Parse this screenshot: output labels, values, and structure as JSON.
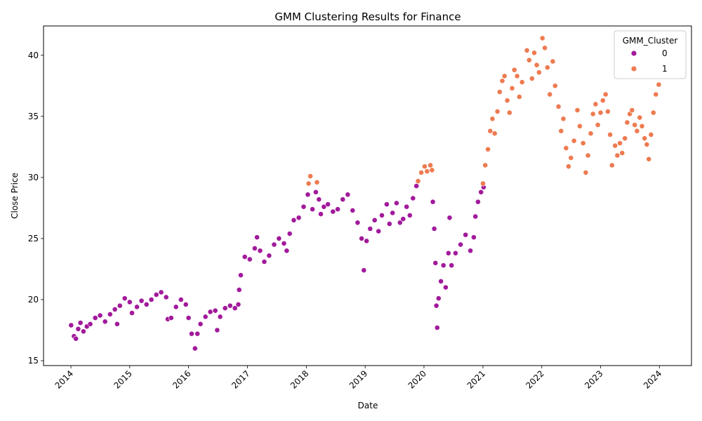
{
  "chart_data": {
    "type": "scatter",
    "title": "GMM Clustering Results for Finance",
    "xlabel": "Date",
    "ylabel": "Close Price",
    "x_ticks": [
      "2014",
      "2015",
      "2016",
      "2017",
      "2018",
      "2019",
      "2020",
      "2021",
      "2022",
      "2023",
      "2024"
    ],
    "y_ticks": [
      15,
      20,
      25,
      30,
      35,
      40
    ],
    "xlim": [
      "2013-07-15",
      "2024-07-18"
    ],
    "ylim": [
      14.6,
      42.4
    ],
    "grid": false,
    "legend": {
      "title": "GMM_Cluster",
      "placement": "top-right",
      "entries": [
        {
          "label": "0",
          "color": "#a21a9b"
        },
        {
          "label": "1",
          "color": "#ee7b51"
        }
      ]
    },
    "series": [
      {
        "name": "0",
        "color": "#a21a9b",
        "points": [
          [
            "2014-01-02",
            17.9
          ],
          [
            "2014-01-20",
            17.0
          ],
          [
            "2014-02-01",
            16.8
          ],
          [
            "2014-02-15",
            17.6
          ],
          [
            "2014-03-01",
            18.1
          ],
          [
            "2014-03-20",
            17.4
          ],
          [
            "2014-04-10",
            17.8
          ],
          [
            "2014-05-01",
            18.0
          ],
          [
            "2014-06-01",
            18.5
          ],
          [
            "2014-07-01",
            18.7
          ],
          [
            "2014-08-01",
            18.2
          ],
          [
            "2014-09-01",
            18.8
          ],
          [
            "2014-10-01",
            19.2
          ],
          [
            "2014-10-15",
            18.0
          ],
          [
            "2014-11-01",
            19.5
          ],
          [
            "2014-12-01",
            20.1
          ],
          [
            "2015-01-01",
            19.8
          ],
          [
            "2015-01-15",
            18.9
          ],
          [
            "2015-02-15",
            19.4
          ],
          [
            "2015-03-15",
            19.9
          ],
          [
            "2015-04-15",
            19.6
          ],
          [
            "2015-05-15",
            20.0
          ],
          [
            "2015-06-15",
            20.4
          ],
          [
            "2015-07-15",
            20.6
          ],
          [
            "2015-08-15",
            20.2
          ],
          [
            "2015-08-25",
            18.4
          ],
          [
            "2015-09-15",
            18.5
          ],
          [
            "2015-10-15",
            19.4
          ],
          [
            "2015-11-15",
            20.0
          ],
          [
            "2015-12-15",
            19.6
          ],
          [
            "2016-01-01",
            18.5
          ],
          [
            "2016-01-20",
            17.2
          ],
          [
            "2016-02-10",
            16.0
          ],
          [
            "2016-02-25",
            17.2
          ],
          [
            "2016-03-15",
            18.0
          ],
          [
            "2016-04-15",
            18.6
          ],
          [
            "2016-05-15",
            19.0
          ],
          [
            "2016-06-15",
            19.1
          ],
          [
            "2016-06-27",
            17.5
          ],
          [
            "2016-07-15",
            18.6
          ],
          [
            "2016-08-15",
            19.3
          ],
          [
            "2016-09-15",
            19.5
          ],
          [
            "2016-10-15",
            19.3
          ],
          [
            "2016-11-05",
            19.6
          ],
          [
            "2016-11-10",
            20.8
          ],
          [
            "2016-11-20",
            22.0
          ],
          [
            "2016-12-15",
            23.5
          ],
          [
            "2017-01-15",
            23.3
          ],
          [
            "2017-02-15",
            24.2
          ],
          [
            "2017-03-01",
            25.1
          ],
          [
            "2017-03-20",
            24.0
          ],
          [
            "2017-04-15",
            23.1
          ],
          [
            "2017-05-15",
            23.6
          ],
          [
            "2017-06-15",
            24.5
          ],
          [
            "2017-07-15",
            25.0
          ],
          [
            "2017-08-15",
            24.6
          ],
          [
            "2017-09-01",
            24.0
          ],
          [
            "2017-09-20",
            25.4
          ],
          [
            "2017-10-15",
            26.5
          ],
          [
            "2017-11-15",
            26.7
          ],
          [
            "2017-12-15",
            27.6
          ],
          [
            "2018-01-10",
            28.6
          ],
          [
            "2018-02-08",
            27.4
          ],
          [
            "2018-03-01",
            28.8
          ],
          [
            "2018-03-20",
            28.2
          ],
          [
            "2018-04-01",
            27.0
          ],
          [
            "2018-04-20",
            27.6
          ],
          [
            "2018-05-15",
            27.8
          ],
          [
            "2018-06-15",
            27.2
          ],
          [
            "2018-07-15",
            27.4
          ],
          [
            "2018-08-15",
            28.2
          ],
          [
            "2018-09-15",
            28.6
          ],
          [
            "2018-10-15",
            27.3
          ],
          [
            "2018-11-15",
            26.3
          ],
          [
            "2018-12-10",
            25.0
          ],
          [
            "2018-12-24",
            22.4
          ],
          [
            "2019-01-10",
            24.8
          ],
          [
            "2019-02-01",
            25.8
          ],
          [
            "2019-03-01",
            26.5
          ],
          [
            "2019-03-25",
            25.6
          ],
          [
            "2019-04-15",
            26.9
          ],
          [
            "2019-05-15",
            27.8
          ],
          [
            "2019-06-01",
            26.2
          ],
          [
            "2019-06-20",
            27.1
          ],
          [
            "2019-07-15",
            27.9
          ],
          [
            "2019-08-05",
            26.3
          ],
          [
            "2019-08-25",
            26.6
          ],
          [
            "2019-09-15",
            27.6
          ],
          [
            "2019-10-05",
            26.9
          ],
          [
            "2019-10-25",
            28.3
          ],
          [
            "2019-11-15",
            29.3
          ],
          [
            "2020-02-25",
            28.0
          ],
          [
            "2020-03-05",
            25.8
          ],
          [
            "2020-03-12",
            23.0
          ],
          [
            "2020-03-18",
            19.5
          ],
          [
            "2020-03-23",
            17.7
          ],
          [
            "2020-04-01",
            20.1
          ],
          [
            "2020-04-15",
            21.5
          ],
          [
            "2020-05-01",
            22.8
          ],
          [
            "2020-05-15",
            21.0
          ],
          [
            "2020-06-01",
            23.8
          ],
          [
            "2020-06-08",
            26.7
          ],
          [
            "2020-06-20",
            22.8
          ],
          [
            "2020-07-15",
            23.8
          ],
          [
            "2020-08-15",
            24.5
          ],
          [
            "2020-09-15",
            25.3
          ],
          [
            "2020-10-15",
            24.0
          ],
          [
            "2020-11-05",
            25.1
          ],
          [
            "2020-11-15",
            26.8
          ],
          [
            "2020-12-01",
            28.0
          ],
          [
            "2020-12-20",
            28.8
          ],
          [
            "2021-01-05",
            29.2
          ]
        ]
      },
      {
        "name": "1",
        "color": "#ee7b51",
        "points": [
          [
            "2018-01-15",
            29.5
          ],
          [
            "2018-01-26",
            30.1
          ],
          [
            "2018-03-08",
            29.6
          ],
          [
            "2019-11-25",
            29.7
          ],
          [
            "2019-12-15",
            30.4
          ],
          [
            "2020-01-05",
            30.9
          ],
          [
            "2020-01-20",
            30.5
          ],
          [
            "2020-02-10",
            31.0
          ],
          [
            "2020-02-20",
            30.6
          ],
          [
            "2021-01-01",
            29.5
          ],
          [
            "2021-01-15",
            31.0
          ],
          [
            "2021-02-01",
            32.3
          ],
          [
            "2021-02-15",
            33.8
          ],
          [
            "2021-03-01",
            34.8
          ],
          [
            "2021-03-15",
            33.6
          ],
          [
            "2021-04-01",
            35.4
          ],
          [
            "2021-04-15",
            37.0
          ],
          [
            "2021-05-01",
            37.9
          ],
          [
            "2021-05-15",
            38.3
          ],
          [
            "2021-06-01",
            36.3
          ],
          [
            "2021-06-15",
            35.3
          ],
          [
            "2021-07-01",
            37.3
          ],
          [
            "2021-07-15",
            38.8
          ],
          [
            "2021-08-01",
            38.3
          ],
          [
            "2021-08-15",
            36.6
          ],
          [
            "2021-09-01",
            37.8
          ],
          [
            "2021-10-01",
            40.4
          ],
          [
            "2021-10-15",
            39.6
          ],
          [
            "2021-11-01",
            38.1
          ],
          [
            "2021-11-15",
            40.2
          ],
          [
            "2021-12-01",
            39.2
          ],
          [
            "2021-12-15",
            38.6
          ],
          [
            "2022-01-05",
            41.4
          ],
          [
            "2022-01-20",
            40.6
          ],
          [
            "2022-02-05",
            39.0
          ],
          [
            "2022-02-20",
            36.8
          ],
          [
            "2022-03-10",
            39.5
          ],
          [
            "2022-03-25",
            37.5
          ],
          [
            "2022-04-15",
            35.8
          ],
          [
            "2022-05-01",
            33.8
          ],
          [
            "2022-05-15",
            34.8
          ],
          [
            "2022-06-01",
            32.4
          ],
          [
            "2022-06-16",
            30.9
          ],
          [
            "2022-07-01",
            31.6
          ],
          [
            "2022-07-20",
            33.0
          ],
          [
            "2022-08-10",
            35.5
          ],
          [
            "2022-08-25",
            34.2
          ],
          [
            "2022-09-15",
            32.8
          ],
          [
            "2022-10-01",
            30.4
          ],
          [
            "2022-10-15",
            31.8
          ],
          [
            "2022-11-01",
            33.6
          ],
          [
            "2022-11-15",
            35.2
          ],
          [
            "2022-12-01",
            36.0
          ],
          [
            "2022-12-15",
            34.3
          ],
          [
            "2023-01-01",
            35.3
          ],
          [
            "2023-01-15",
            36.3
          ],
          [
            "2023-02-01",
            36.8
          ],
          [
            "2023-02-15",
            35.4
          ],
          [
            "2023-03-01",
            33.5
          ],
          [
            "2023-03-13",
            31.0
          ],
          [
            "2023-04-01",
            32.6
          ],
          [
            "2023-04-15",
            31.8
          ],
          [
            "2023-05-01",
            32.8
          ],
          [
            "2023-05-15",
            32.0
          ],
          [
            "2023-06-01",
            33.2
          ],
          [
            "2023-06-15",
            34.5
          ],
          [
            "2023-07-01",
            35.2
          ],
          [
            "2023-07-15",
            35.5
          ],
          [
            "2023-08-01",
            34.3
          ],
          [
            "2023-08-15",
            33.8
          ],
          [
            "2023-09-01",
            34.9
          ],
          [
            "2023-09-15",
            34.2
          ],
          [
            "2023-10-01",
            33.2
          ],
          [
            "2023-10-15",
            32.7
          ],
          [
            "2023-10-27",
            31.5
          ],
          [
            "2023-11-10",
            33.5
          ],
          [
            "2023-11-25",
            35.3
          ],
          [
            "2023-12-10",
            36.8
          ],
          [
            "2023-12-28",
            37.6
          ]
        ]
      }
    ]
  }
}
